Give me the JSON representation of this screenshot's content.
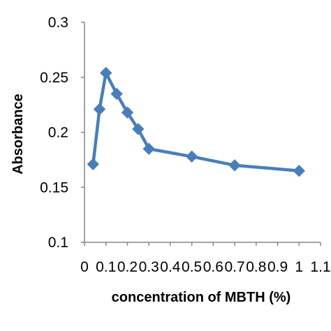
{
  "chart_data": {
    "type": "line",
    "title": "",
    "xlabel": "concentration of MBTH (%)",
    "ylabel": "Absorbance",
    "xlim": [
      0,
      1.1
    ],
    "ylim": [
      0.1,
      0.3
    ],
    "x_ticks": [
      "0",
      "0.1",
      "0.2",
      "0.3",
      "0.4",
      "0.5",
      "0.6",
      "0.7",
      "0.8",
      "0.9",
      "1",
      "1.1"
    ],
    "y_ticks": [
      "0.1",
      "0.15",
      "0.2",
      "0.25",
      "0.3"
    ],
    "grid": false,
    "legend": "none",
    "series": [
      {
        "color": "#4a7ebb",
        "marker": "diamond",
        "x": [
          0.04,
          0.07,
          0.1,
          0.15,
          0.2,
          0.25,
          0.3,
          0.5,
          0.7,
          1.0
        ],
        "y": [
          0.171,
          0.221,
          0.254,
          0.235,
          0.218,
          0.203,
          0.185,
          0.178,
          0.17,
          0.165
        ]
      }
    ]
  }
}
